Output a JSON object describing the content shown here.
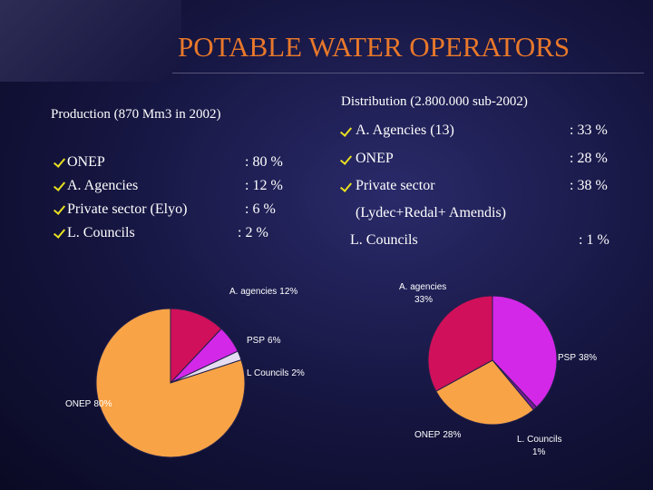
{
  "title": "POTABLE WATER OPERATORS",
  "production": {
    "heading": "Production (870 Mm3 in 2002)",
    "items": [
      {
        "label": "ONEP",
        "value": ": 80 %"
      },
      {
        "label": "A. Agencies",
        "value": ": 12 %"
      },
      {
        "label": "Private sector (Elyo)",
        "value": ": 6 %"
      },
      {
        "label": "L. Councils",
        "value": ": 2 %"
      }
    ]
  },
  "distribution": {
    "heading": "Distribution (2.800.000 sub-2002)",
    "items": [
      {
        "label": "A. Agencies (13)",
        "value": ": 33 %"
      },
      {
        "label": "ONEP",
        "value": ": 28 %"
      },
      {
        "label": "Private sector",
        "value": ": 38 %"
      },
      {
        "label": "L. Councils",
        "value": ": 1 %"
      }
    ],
    "note": "(Lydec+Redal+ Amendis)"
  },
  "chart_data": [
    {
      "type": "pie",
      "categories": [
        "A. agencies",
        "PSP",
        "L Councils",
        "ONEP"
      ],
      "values": [
        12,
        6,
        2,
        80
      ],
      "value_labels": [
        "12%",
        "6%",
        "2%",
        "80%"
      ],
      "colors": [
        "#d0105a",
        "#d428e8",
        "#e4dcf0",
        "#f9a347"
      ]
    },
    {
      "type": "pie",
      "categories": [
        "PSP",
        "L. Councils",
        "ONEP",
        "A. agencies"
      ],
      "values": [
        38,
        1,
        28,
        33
      ],
      "value_labels": [
        "38%",
        "1%",
        "28%",
        "33%"
      ],
      "colors": [
        "#d428e8",
        "#7a1a9a",
        "#f9a347",
        "#d0105a"
      ]
    }
  ]
}
